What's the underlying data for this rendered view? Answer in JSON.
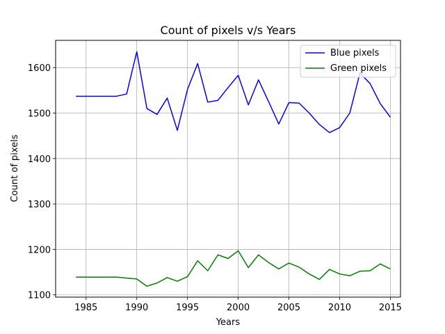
{
  "chart_data": {
    "type": "line",
    "title": "Count of pixels v/s Years",
    "xlabel": "Years",
    "ylabel": "Count of pixels",
    "xlim": [
      1982,
      2016
    ],
    "ylim": [
      1095,
      1660
    ],
    "xticks": [
      1985,
      1990,
      1995,
      2000,
      2005,
      2010,
      2015
    ],
    "yticks": [
      1100,
      1200,
      1300,
      1400,
      1500,
      1600
    ],
    "grid": true,
    "legend_position": "top-right",
    "x": [
      1984,
      1985,
      1986,
      1987,
      1988,
      1989,
      1990,
      1991,
      1992,
      1993,
      1994,
      1995,
      1996,
      1997,
      1998,
      1999,
      2000,
      2001,
      2002,
      2003,
      2004,
      2005,
      2006,
      2007,
      2008,
      2009,
      2010,
      2011,
      2012,
      2013,
      2014,
      2015
    ],
    "series": [
      {
        "name": "Blue pixels",
        "color": "#0000ff",
        "values": [
          1537,
          1537,
          1537,
          1537,
          1537,
          1542,
          1635,
          1510,
          1497,
          1533,
          1462,
          1552,
          1609,
          1524,
          1528,
          1556,
          1583,
          1518,
          1573,
          1525,
          1476,
          1523,
          1522,
          1500,
          1475,
          1457,
          1468,
          1500,
          1588,
          1565,
          1521,
          1491
        ]
      },
      {
        "name": "Green pixels",
        "color": "#008000",
        "values": [
          1139,
          1139,
          1139,
          1139,
          1139,
          1137,
          1135,
          1119,
          1126,
          1138,
          1130,
          1140,
          1175,
          1153,
          1188,
          1180,
          1197,
          1160,
          1188,
          1171,
          1157,
          1170,
          1161,
          1146,
          1134,
          1156,
          1146,
          1142,
          1152,
          1153,
          1168,
          1157
        ]
      }
    ]
  }
}
